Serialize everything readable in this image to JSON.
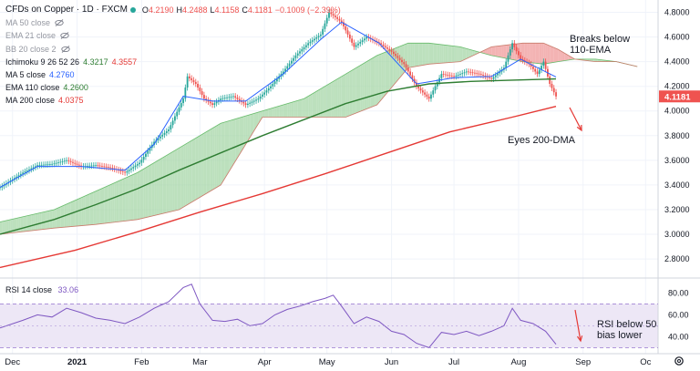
{
  "header": {
    "title": "CFDs on Copper · 1D · FXCM",
    "ohlc": {
      "o_label": "O",
      "o": "4.2190",
      "h_label": "H",
      "h": "4.2488",
      "l_label": "L",
      "l": "4.1158",
      "c_label": "C",
      "c": "4.1181",
      "chg": "−0.1009 (−2.39%)"
    }
  },
  "indicators": [
    {
      "label": "MA 50 close",
      "value": "",
      "hidden": true
    },
    {
      "label": "EMA 21 close",
      "value": "",
      "hidden": true
    },
    {
      "label": "BB 20 close 2",
      "value": "",
      "hidden": true
    },
    {
      "label": "Ichimoku 9 26 52 26",
      "value": "4.3217",
      "value2": "4.3557"
    },
    {
      "label": "MA 5 close",
      "value": "4.2760"
    },
    {
      "label": "EMA 110 close",
      "value": "4.2600"
    },
    {
      "label": "MA 200 close",
      "value": "4.0375"
    }
  ],
  "rsi_legend": {
    "label": "RSI 14 close",
    "value": "33.06"
  },
  "annotations": [
    {
      "id": "breaks",
      "line1": "Breaks below",
      "line2": "110-EMA"
    },
    {
      "id": "eyes",
      "line1": "Eyes 200-DMA"
    },
    {
      "id": "rsi",
      "line1": "RSI below 50,",
      "line2": "bias lower"
    }
  ],
  "colors": {
    "up": "#26a69a",
    "down": "#ef5350",
    "ma5": "#2962ff",
    "ema110": "#2e7d32",
    "ma200": "#e53935",
    "cloud_green": "#a5d6a7",
    "cloud_red": "#ef9a9a",
    "rsi": "#7e57c2",
    "rsi_band": "#ede7f6",
    "price_tag": "#ef5350"
  },
  "chart_data": {
    "type": "line",
    "title": "CFDs on Copper · 1D · FXCM",
    "price_axis": {
      "ticks": [
        "4.8000",
        "4.6000",
        "4.4000",
        "4.2000",
        "4.0000",
        "3.8000",
        "3.6000",
        "3.4000",
        "3.2000",
        "3.0000",
        "2.8000"
      ],
      "ylim": [
        2.66,
        4.9
      ],
      "last_price_label": "4.1181"
    },
    "rsi_axis": {
      "ticks": [
        "80.00",
        "60.00",
        "40.00"
      ],
      "ylim": [
        27,
        92
      ],
      "upper_band": 70,
      "lower_band": 30
    },
    "x_ticks": [
      "Dec",
      "2021",
      "Feb",
      "Mar",
      "Apr",
      "May",
      "Jun",
      "Jul",
      "Aug",
      "Sep",
      "Oc"
    ],
    "x_tick_days": [
      0,
      31,
      62,
      90,
      121,
      151,
      182,
      212,
      243,
      274,
      304
    ],
    "x_range_days": [
      -6,
      310
    ],
    "close_series": {
      "days": [
        -6,
        5,
        12,
        19,
        26,
        33,
        40,
        47,
        54,
        61,
        68,
        75,
        82,
        84,
        88,
        92,
        96,
        100,
        106,
        112,
        118,
        124,
        130,
        136,
        142,
        148,
        152,
        158,
        164,
        170,
        176,
        182,
        188,
        194,
        200,
        206,
        212,
        218,
        224,
        230,
        236,
        240,
        244,
        248,
        252,
        255,
        258,
        261
      ],
      "values": [
        3.38,
        3.5,
        3.56,
        3.57,
        3.6,
        3.55,
        3.56,
        3.54,
        3.5,
        3.58,
        3.75,
        3.85,
        4.1,
        4.28,
        4.22,
        4.1,
        4.05,
        4.1,
        4.12,
        4.05,
        4.1,
        4.2,
        4.32,
        4.45,
        4.55,
        4.62,
        4.8,
        4.72,
        4.52,
        4.6,
        4.55,
        4.48,
        4.38,
        4.2,
        4.1,
        4.3,
        4.28,
        4.32,
        4.3,
        4.26,
        4.35,
        4.55,
        4.42,
        4.38,
        4.3,
        4.4,
        4.22,
        4.118
      ]
    },
    "series": [
      {
        "name": "MA 5 close",
        "days": [
          -6,
          12,
          33,
          54,
          68,
          82,
          96,
          112,
          130,
          148,
          158,
          176,
          194,
          212,
          230,
          244,
          261
        ],
        "values": [
          3.38,
          3.55,
          3.55,
          3.52,
          3.73,
          4.12,
          4.08,
          4.08,
          4.3,
          4.58,
          4.72,
          4.55,
          4.22,
          4.27,
          4.28,
          4.42,
          4.276
        ]
      },
      {
        "name": "EMA 110 close",
        "days": [
          -6,
          20,
          40,
          60,
          80,
          100,
          120,
          140,
          160,
          180,
          200,
          220,
          240,
          261
        ],
        "values": [
          3.0,
          3.12,
          3.24,
          3.37,
          3.52,
          3.66,
          3.8,
          3.93,
          4.06,
          4.16,
          4.22,
          4.24,
          4.25,
          4.26
        ]
      },
      {
        "name": "MA 200 close",
        "days": [
          -6,
          30,
          60,
          90,
          120,
          150,
          180,
          210,
          240,
          261
        ],
        "values": [
          2.73,
          2.87,
          3.02,
          3.18,
          3.33,
          3.49,
          3.66,
          3.83,
          3.95,
          4.0375
        ]
      },
      {
        "name": "RSI 14 close",
        "days": [
          -6,
          5,
          12,
          19,
          26,
          33,
          40,
          47,
          54,
          61,
          68,
          75,
          82,
          86,
          90,
          96,
          102,
          108,
          114,
          120,
          126,
          132,
          138,
          144,
          150,
          154,
          158,
          164,
          170,
          176,
          182,
          188,
          194,
          200,
          206,
          212,
          218,
          224,
          230,
          236,
          240,
          244,
          250,
          256,
          261
        ],
        "values": [
          48,
          55,
          60,
          58,
          66,
          62,
          57,
          55,
          52,
          58,
          66,
          72,
          85,
          88,
          70,
          55,
          54,
          56,
          50,
          52,
          60,
          65,
          68,
          72,
          75,
          78,
          68,
          52,
          58,
          54,
          45,
          42,
          34,
          30,
          44,
          42,
          45,
          41,
          45,
          50,
          66,
          55,
          52,
          45,
          33.06
        ]
      }
    ],
    "ichimoku_cloud": {
      "days": [
        -6,
        20,
        40,
        60,
        80,
        100,
        120,
        140,
        160,
        175,
        190,
        200,
        215,
        230,
        245,
        255,
        262,
        270,
        280,
        290,
        300
      ],
      "span_a": [
        3.1,
        3.2,
        3.35,
        3.5,
        3.7,
        3.9,
        4.0,
        4.1,
        4.3,
        4.45,
        4.55,
        4.55,
        4.52,
        4.45,
        4.4,
        4.38,
        4.4,
        4.42,
        4.42,
        4.4,
        4.36
      ],
      "span_b": [
        3.0,
        3.05,
        3.08,
        3.12,
        3.2,
        3.4,
        3.95,
        3.95,
        3.95,
        4.05,
        4.35,
        4.38,
        4.4,
        4.52,
        4.55,
        4.55,
        4.5,
        4.42,
        4.4,
        4.4,
        4.36
      ]
    }
  }
}
